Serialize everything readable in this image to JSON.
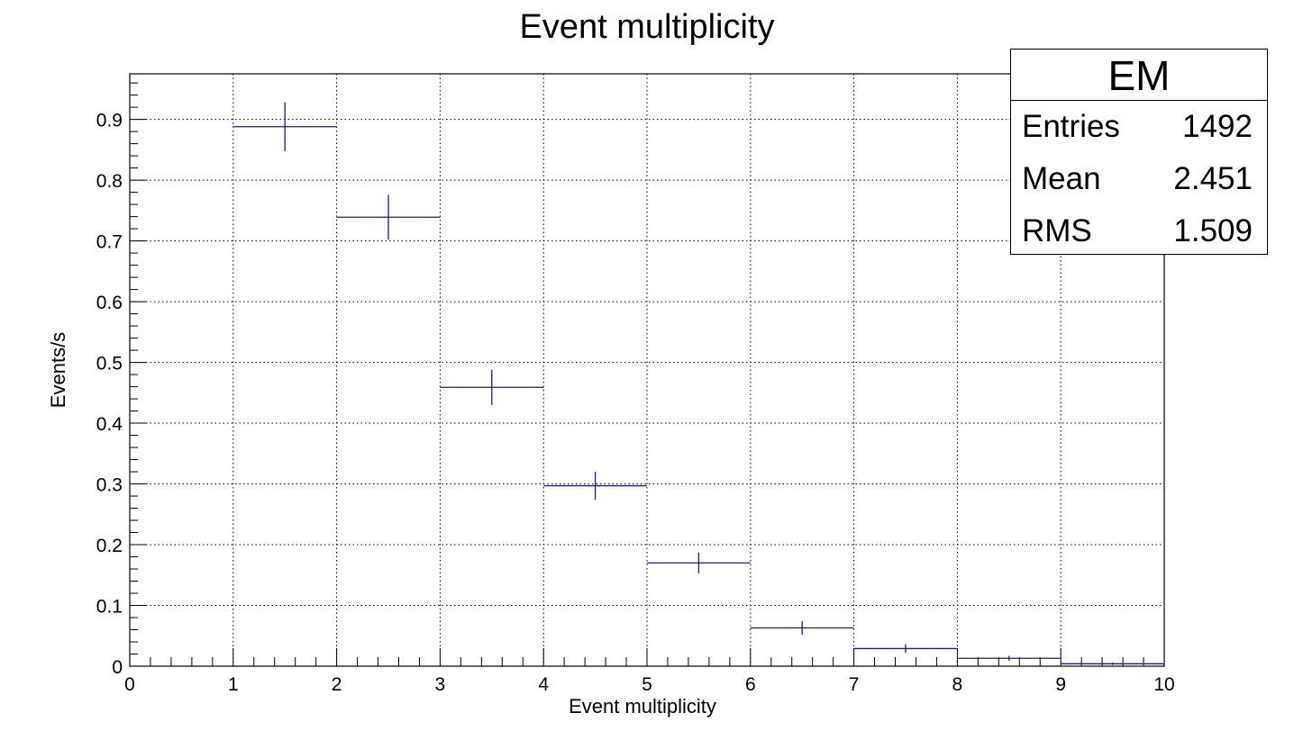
{
  "chart_data": {
    "type": "histogram",
    "title": "Event multiplicity",
    "xlabel": "Event multiplicity",
    "ylabel": "Events/s",
    "xlim": [
      0,
      10
    ],
    "ylim": [
      0,
      0.975
    ],
    "grid": true,
    "bin_edges": [
      1,
      2,
      3,
      4,
      5,
      6,
      7,
      8,
      9,
      10
    ],
    "values": [
      0.888,
      0.739,
      0.459,
      0.297,
      0.17,
      0.063,
      0.029,
      0.013,
      0.004
    ],
    "errors": [
      0.04,
      0.037,
      0.029,
      0.023,
      0.017,
      0.011,
      0.007,
      0.004,
      0.002
    ],
    "x_ticks": [
      "0",
      "1",
      "2",
      "3",
      "4",
      "5",
      "6",
      "7",
      "8",
      "9",
      "10"
    ],
    "y_ticks": [
      "0",
      "0.1",
      "0.2",
      "0.3",
      "0.4",
      "0.5",
      "0.6",
      "0.7",
      "0.8",
      "0.9"
    ],
    "series_color": "#1c1c8c"
  },
  "stats": {
    "title": "EM",
    "rows": [
      {
        "label": "Entries",
        "value": "1492"
      },
      {
        "label": "Mean",
        "value": "2.451"
      },
      {
        "label": "RMS",
        "value": "1.509"
      }
    ]
  }
}
